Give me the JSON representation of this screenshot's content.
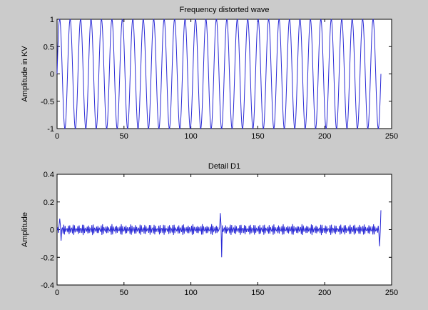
{
  "chart_data": [
    {
      "type": "line",
      "title": "Frequency distorted wave",
      "xlabel": "",
      "ylabel": "Amplitude in KV",
      "xlim": [
        0,
        250
      ],
      "ylim": [
        -1,
        1
      ],
      "x_ticks": [
        "0",
        "50",
        "100",
        "150",
        "200",
        "250"
      ],
      "y_ticks": [
        "-1",
        "-0.5",
        "0",
        "0.5",
        "1"
      ],
      "grid": false,
      "line_color": "#2b2bd6",
      "series": [
        {
          "description_of_shape": "sinusoid of amplitude 1, about 31 cycles over samples 0-242, ends near 0",
          "x": [
            0,
            242
          ],
          "cycles": 31,
          "amplitude": 1
        }
      ]
    },
    {
      "type": "line",
      "title": "Detail D1",
      "xlabel": "",
      "ylabel": "Amplitude",
      "xlim": [
        0,
        250
      ],
      "ylim": [
        -0.4,
        0.4
      ],
      "x_ticks": [
        "0",
        "50",
        "100",
        "150",
        "200",
        "250"
      ],
      "y_ticks": [
        "-0.4",
        "-0.2",
        "0",
        "0.2",
        "0.4"
      ],
      "grid": false,
      "line_color": "#2b2bd6",
      "series": [
        {
          "x": [
            0,
            242
          ],
          "typical_amplitude": 0.04,
          "spikes": [
            {
              "x": 2,
              "y": 0.08
            },
            {
              "x": 3,
              "y": -0.08
            },
            {
              "x": 122,
              "y": 0.12
            },
            {
              "x": 123,
              "y": -0.2
            },
            {
              "x": 241,
              "y": -0.12
            },
            {
              "x": 242,
              "y": 0.14
            }
          ]
        }
      ]
    }
  ]
}
